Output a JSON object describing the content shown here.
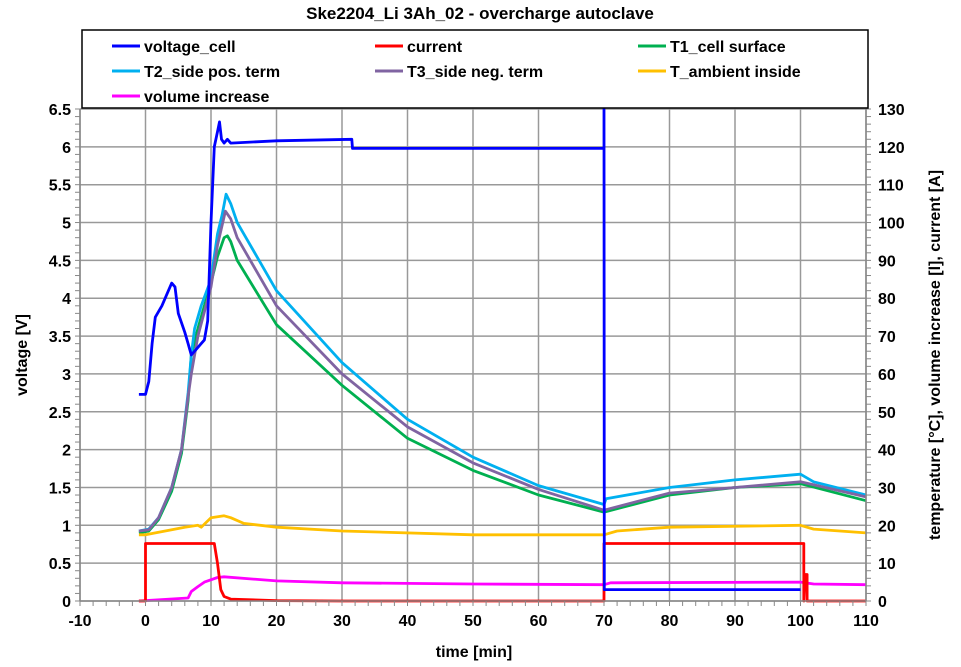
{
  "chart_data": {
    "type": "line",
    "title": "Ske2204_Li  3Ah_02 - overcharge autoclave",
    "xlabel": "time [min]",
    "ylabel": "voltage [V]",
    "y2label": "temperature [°C], volume increase [l], current [A]",
    "xlim": [
      -10,
      110
    ],
    "ylim": [
      0,
      6.5
    ],
    "y2lim": [
      0,
      130
    ],
    "x_ticks": [
      -10,
      0,
      10,
      20,
      30,
      40,
      50,
      60,
      70,
      80,
      90,
      100,
      110
    ],
    "y_ticks": [
      0,
      0.5,
      1,
      1.5,
      2,
      2.5,
      3,
      3.5,
      4,
      4.5,
      5,
      5.5,
      6,
      6.5
    ],
    "y_tick_labels": [
      "0",
      "0.5",
      "1",
      "1.5",
      "2",
      "2.5",
      "3",
      "3.5",
      "4",
      "4.5",
      "5",
      "5.5",
      "6",
      "6.5"
    ],
    "y2_ticks": [
      0,
      10,
      20,
      30,
      40,
      50,
      60,
      70,
      80,
      90,
      100,
      110,
      120,
      130
    ],
    "grid": true,
    "legend_position": "top",
    "series": [
      {
        "name": "voltage_cell",
        "axis": "left",
        "color": "#0000ff",
        "x": [
          -1,
          0,
          0.5,
          1,
          1.5,
          2.5,
          3.5,
          4,
          4.5,
          5,
          6,
          6.5,
          7,
          7.5,
          8.5,
          9,
          9.5,
          10,
          10.5,
          11,
          11.3,
          11.6,
          12,
          12.5,
          13,
          20,
          31.5,
          31.6,
          70,
          70,
          70.05,
          100
        ],
        "y": [
          2.73,
          2.73,
          2.9,
          3.4,
          3.75,
          3.9,
          4.1,
          4.2,
          4.15,
          3.8,
          3.55,
          3.4,
          3.25,
          3.3,
          3.4,
          3.45,
          3.7,
          5.0,
          6.0,
          6.2,
          6.33,
          6.1,
          6.05,
          6.1,
          6.05,
          6.08,
          6.1,
          5.98,
          5.98,
          6.5,
          0.15,
          0.15
        ]
      },
      {
        "name": "current",
        "axis": "right",
        "color": "#ff0000",
        "x": [
          -1,
          0,
          0,
          10.5,
          11,
          11.5,
          12,
          13,
          20,
          30,
          70,
          70,
          100.5,
          100.5,
          100.7,
          101,
          101,
          110
        ],
        "y": [
          0,
          0,
          15.2,
          15.2,
          10,
          3,
          1.2,
          0.5,
          0.1,
          0,
          0,
          15.2,
          15.2,
          0,
          7,
          7,
          0,
          0
        ]
      },
      {
        "name": "T1_cell surface",
        "axis": "right",
        "color": "#00b050",
        "x": [
          -1,
          0.5,
          2,
          4,
          5.5,
          6.5,
          7,
          8,
          9,
          10,
          11,
          12,
          12.5,
          13,
          14,
          20,
          30,
          40,
          50,
          60,
          70,
          80,
          90,
          100,
          110
        ],
        "y": [
          18,
          18.5,
          21.5,
          29,
          39,
          53,
          65,
          72,
          78,
          84,
          91,
          96,
          96.5,
          95,
          90,
          73,
          57,
          43,
          34.5,
          28,
          23.5,
          28,
          30,
          31,
          26.5
        ]
      },
      {
        "name": "T2_side pos. term",
        "axis": "right",
        "color": "#00b0f0",
        "x": [
          -1,
          0.5,
          2,
          4,
          5.5,
          6.5,
          7,
          7.5,
          8.5,
          10,
          11,
          11.7,
          12.3,
          13,
          14,
          15,
          20,
          30,
          40,
          50,
          60,
          70,
          70.3,
          80,
          90,
          100,
          102,
          110
        ],
        "y": [
          18.5,
          19,
          22,
          30,
          40,
          55,
          65,
          72,
          78,
          85,
          97,
          102,
          107.5,
          105,
          100,
          97,
          82,
          63,
          48,
          38,
          30.5,
          25.5,
          27,
          30,
          32,
          33.5,
          31.5,
          28
        ]
      },
      {
        "name": "T3_side neg. term",
        "axis": "right",
        "color": "#8064a2",
        "x": [
          -1,
          0.5,
          2,
          4,
          5.5,
          6.5,
          7,
          8,
          10,
          11,
          12.2,
          13,
          14,
          20,
          30,
          40,
          50,
          60,
          70,
          80,
          90,
          100,
          110
        ],
        "y": [
          18.5,
          18.8,
          22,
          30,
          40,
          54,
          60,
          70,
          83,
          94,
          103,
          101,
          96,
          78,
          60,
          46,
          36.5,
          29.5,
          24,
          28.5,
          30,
          31.5,
          27.5
        ]
      },
      {
        "name": "T_ambient inside",
        "axis": "right",
        "color": "#ffc000",
        "x": [
          -1,
          0,
          3,
          6,
          8,
          8.5,
          10,
          12,
          13,
          15,
          20,
          30,
          50,
          70,
          72,
          80,
          100,
          102,
          110
        ],
        "y": [
          17.5,
          17.5,
          18.5,
          19.5,
          20,
          19.5,
          22,
          22.5,
          22,
          20.5,
          19.5,
          18.5,
          17.5,
          17.5,
          18.5,
          19.5,
          20,
          19,
          18
        ]
      },
      {
        "name": "volume increase",
        "axis": "right",
        "color": "#ff00ff",
        "x": [
          -1,
          6.5,
          7,
          8,
          9,
          11,
          12,
          20,
          30,
          50,
          70,
          71,
          100,
          102,
          110
        ],
        "y": [
          0,
          0.8,
          2.5,
          3.8,
          5,
          6.2,
          6.4,
          5.3,
          4.8,
          4.5,
          4.3,
          4.8,
          5,
          4.5,
          4.3
        ]
      }
    ]
  }
}
